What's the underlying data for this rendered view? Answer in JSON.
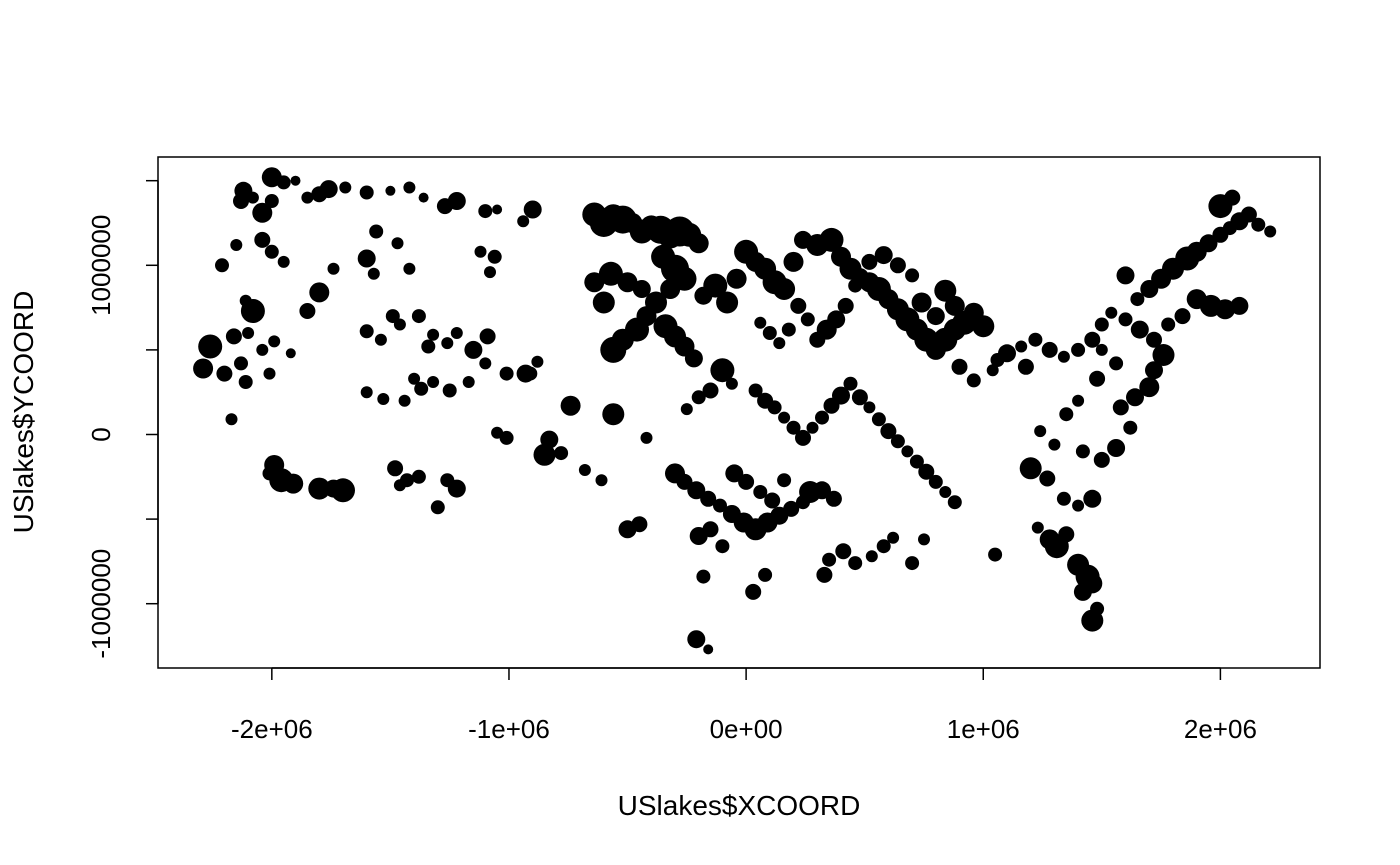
{
  "chart_data": {
    "type": "scatter",
    "title": "",
    "xlabel": "USlakes$XCOORD",
    "ylabel": "USlakes$YCOORD",
    "xlim": [
      -2480000,
      2420000
    ],
    "ylim": [
      -1380000,
      1640000
    ],
    "x_ticks": [
      -2000000,
      -1000000,
      0,
      1000000,
      2000000
    ],
    "x_tick_labels": [
      "-2e+06",
      "-1e+06",
      "0e+00",
      "1e+06",
      "2e+06"
    ],
    "y_ticks": [
      -1000000,
      -500000,
      0,
      500000,
      1000000,
      1500000
    ],
    "y_tick_labels": [
      "-1000000",
      "",
      "0",
      "",
      "1000000",
      ""
    ],
    "grid": false,
    "legend": "none",
    "point_color": "#000000",
    "size_note": "symbol size varies per lake",
    "points": [
      [
        -2000000,
        1520000,
        10
      ],
      [
        -1950000,
        1490000,
        7
      ],
      [
        -1900000,
        1500000,
        5
      ],
      [
        -2120000,
        1440000,
        9
      ],
      [
        -2080000,
        1400000,
        6
      ],
      [
        -2130000,
        1380000,
        8
      ],
      [
        -2040000,
        1310000,
        10
      ],
      [
        -2000000,
        1380000,
        7
      ],
      [
        -1850000,
        1400000,
        6
      ],
      [
        -1800000,
        1420000,
        8
      ],
      [
        -1760000,
        1450000,
        9
      ],
      [
        -1690000,
        1460000,
        6
      ],
      [
        -1600000,
        1430000,
        7
      ],
      [
        -1500000,
        1440000,
        5
      ],
      [
        -1420000,
        1460000,
        6
      ],
      [
        -1360000,
        1400000,
        5
      ],
      [
        -1270000,
        1350000,
        8
      ],
      [
        -1220000,
        1380000,
        9
      ],
      [
        -1100000,
        1320000,
        7
      ],
      [
        -1050000,
        1330000,
        5
      ],
      [
        -900000,
        1330000,
        9
      ],
      [
        -940000,
        1260000,
        6
      ],
      [
        -2150000,
        1120000,
        6
      ],
      [
        -2210000,
        1000000,
        7
      ],
      [
        -2040000,
        1150000,
        8
      ],
      [
        -2000000,
        1080000,
        7
      ],
      [
        -1950000,
        1020000,
        6
      ],
      [
        -1600000,
        1040000,
        9
      ],
      [
        -1570000,
        950000,
        6
      ],
      [
        -1470000,
        1130000,
        6
      ],
      [
        -1560000,
        1200000,
        7
      ],
      [
        -1420000,
        980000,
        6
      ],
      [
        -1120000,
        1080000,
        6
      ],
      [
        -1060000,
        1050000,
        7
      ],
      [
        -1080000,
        960000,
        6
      ],
      [
        -2260000,
        520000,
        12
      ],
      [
        -2290000,
        390000,
        10
      ],
      [
        -2200000,
        360000,
        8
      ],
      [
        -2130000,
        420000,
        7
      ],
      [
        -2110000,
        310000,
        7
      ],
      [
        -2100000,
        600000,
        6
      ],
      [
        -2160000,
        580000,
        8
      ],
      [
        -2040000,
        500000,
        6
      ],
      [
        -1990000,
        550000,
        6
      ],
      [
        -2010000,
        360000,
        6
      ],
      [
        -2110000,
        790000,
        6
      ],
      [
        -2080000,
        730000,
        12
      ],
      [
        -1920000,
        480000,
        5
      ],
      [
        -1850000,
        730000,
        8
      ],
      [
        -1800000,
        840000,
        10
      ],
      [
        -1740000,
        980000,
        6
      ],
      [
        -1600000,
        610000,
        7
      ],
      [
        -1540000,
        560000,
        6
      ],
      [
        -1490000,
        700000,
        7
      ],
      [
        -1460000,
        650000,
        6
      ],
      [
        -1380000,
        700000,
        7
      ],
      [
        -1320000,
        590000,
        6
      ],
      [
        -1260000,
        540000,
        6
      ],
      [
        -1340000,
        520000,
        7
      ],
      [
        -1220000,
        600000,
        6
      ],
      [
        -1150000,
        500000,
        9
      ],
      [
        -1400000,
        330000,
        6
      ],
      [
        -1440000,
        200000,
        6
      ],
      [
        -1370000,
        270000,
        7
      ],
      [
        -1320000,
        310000,
        6
      ],
      [
        -1250000,
        260000,
        7
      ],
      [
        -1170000,
        310000,
        6
      ],
      [
        -1090000,
        580000,
        8
      ],
      [
        -1010000,
        360000,
        7
      ],
      [
        -930000,
        360000,
        9
      ],
      [
        -880000,
        430000,
        6
      ],
      [
        -910000,
        360000,
        7
      ],
      [
        -1100000,
        420000,
        6
      ],
      [
        -1530000,
        210000,
        6
      ],
      [
        -1600000,
        250000,
        6
      ],
      [
        -2170000,
        90000,
        6
      ],
      [
        -1990000,
        -180000,
        10
      ],
      [
        -2010000,
        -230000,
        7
      ],
      [
        -1960000,
        -270000,
        12
      ],
      [
        -1910000,
        -290000,
        10
      ],
      [
        -1800000,
        -320000,
        11
      ],
      [
        -1740000,
        -320000,
        9
      ],
      [
        -1700000,
        -330000,
        12
      ],
      [
        -1480000,
        -200000,
        8
      ],
      [
        -1430000,
        -270000,
        7
      ],
      [
        -1380000,
        -250000,
        7
      ],
      [
        -1460000,
        -300000,
        6
      ],
      [
        -1260000,
        -270000,
        7
      ],
      [
        -1220000,
        -320000,
        9
      ],
      [
        -1300000,
        -430000,
        7
      ],
      [
        -1050000,
        10000,
        6
      ],
      [
        -1010000,
        -20000,
        7
      ],
      [
        -830000,
        -30000,
        9
      ],
      [
        -850000,
        -120000,
        11
      ],
      [
        -780000,
        -110000,
        7
      ],
      [
        -740000,
        170000,
        10
      ],
      [
        -680000,
        -210000,
        6
      ],
      [
        -610000,
        -270000,
        6
      ],
      [
        -560000,
        120000,
        11
      ],
      [
        -420000,
        -20000,
        6
      ],
      [
        -500000,
        -560000,
        9
      ],
      [
        -450000,
        -530000,
        8
      ],
      [
        -640000,
        1300000,
        12
      ],
      [
        -600000,
        1250000,
        14
      ],
      [
        -560000,
        1290000,
        12
      ],
      [
        -520000,
        1270000,
        14
      ],
      [
        -480000,
        1250000,
        10
      ],
      [
        -440000,
        1200000,
        12
      ],
      [
        -400000,
        1230000,
        11
      ],
      [
        -360000,
        1210000,
        14
      ],
      [
        -320000,
        1170000,
        12
      ],
      [
        -280000,
        1200000,
        15
      ],
      [
        -240000,
        1180000,
        12
      ],
      [
        -200000,
        1130000,
        10
      ],
      [
        -350000,
        1050000,
        12
      ],
      [
        -300000,
        980000,
        14
      ],
      [
        -260000,
        920000,
        12
      ],
      [
        -320000,
        860000,
        10
      ],
      [
        -380000,
        780000,
        11
      ],
      [
        -420000,
        700000,
        10
      ],
      [
        -460000,
        620000,
        12
      ],
      [
        -520000,
        560000,
        11
      ],
      [
        -560000,
        500000,
        13
      ],
      [
        -600000,
        780000,
        11
      ],
      [
        -640000,
        900000,
        10
      ],
      [
        -570000,
        950000,
        12
      ],
      [
        -500000,
        900000,
        10
      ],
      [
        -440000,
        860000,
        9
      ],
      [
        -340000,
        640000,
        12
      ],
      [
        -300000,
        580000,
        11
      ],
      [
        -260000,
        520000,
        10
      ],
      [
        -220000,
        450000,
        9
      ],
      [
        -180000,
        820000,
        9
      ],
      [
        -130000,
        880000,
        12
      ],
      [
        -80000,
        780000,
        11
      ],
      [
        -40000,
        920000,
        10
      ],
      [
        0,
        1080000,
        12
      ],
      [
        40000,
        1020000,
        10
      ],
      [
        80000,
        980000,
        11
      ],
      [
        120000,
        900000,
        12
      ],
      [
        160000,
        860000,
        11
      ],
      [
        200000,
        1020000,
        10
      ],
      [
        240000,
        1150000,
        9
      ],
      [
        300000,
        1120000,
        11
      ],
      [
        360000,
        1150000,
        12
      ],
      [
        400000,
        1050000,
        10
      ],
      [
        440000,
        980000,
        11
      ],
      [
        480000,
        930000,
        9
      ],
      [
        520000,
        900000,
        10
      ],
      [
        560000,
        860000,
        12
      ],
      [
        600000,
        800000,
        10
      ],
      [
        640000,
        740000,
        11
      ],
      [
        680000,
        680000,
        12
      ],
      [
        720000,
        620000,
        11
      ],
      [
        760000,
        560000,
        12
      ],
      [
        800000,
        500000,
        10
      ],
      [
        840000,
        560000,
        12
      ],
      [
        880000,
        620000,
        11
      ],
      [
        920000,
        660000,
        12
      ],
      [
        960000,
        720000,
        10
      ],
      [
        1000000,
        640000,
        11
      ],
      [
        880000,
        760000,
        10
      ],
      [
        840000,
        850000,
        11
      ],
      [
        800000,
        700000,
        9
      ],
      [
        740000,
        780000,
        10
      ],
      [
        580000,
        1060000,
        9
      ],
      [
        640000,
        1000000,
        8
      ],
      [
        700000,
        940000,
        7
      ],
      [
        520000,
        1020000,
        8
      ],
      [
        460000,
        880000,
        7
      ],
      [
        420000,
        760000,
        8
      ],
      [
        380000,
        680000,
        9
      ],
      [
        340000,
        620000,
        10
      ],
      [
        300000,
        560000,
        8
      ],
      [
        260000,
        680000,
        7
      ],
      [
        220000,
        760000,
        8
      ],
      [
        180000,
        620000,
        7
      ],
      [
        140000,
        540000,
        6
      ],
      [
        100000,
        600000,
        7
      ],
      [
        60000,
        660000,
        6
      ],
      [
        -60000,
        300000,
        6
      ],
      [
        -100000,
        380000,
        12
      ],
      [
        -150000,
        260000,
        8
      ],
      [
        -200000,
        220000,
        7
      ],
      [
        -250000,
        150000,
        6
      ],
      [
        40000,
        260000,
        7
      ],
      [
        80000,
        200000,
        8
      ],
      [
        120000,
        160000,
        7
      ],
      [
        160000,
        100000,
        6
      ],
      [
        200000,
        40000,
        7
      ],
      [
        240000,
        -20000,
        8
      ],
      [
        280000,
        40000,
        6
      ],
      [
        320000,
        100000,
        7
      ],
      [
        360000,
        170000,
        8
      ],
      [
        400000,
        230000,
        9
      ],
      [
        440000,
        300000,
        7
      ],
      [
        480000,
        220000,
        8
      ],
      [
        520000,
        160000,
        6
      ],
      [
        560000,
        90000,
        7
      ],
      [
        600000,
        20000,
        8
      ],
      [
        640000,
        -40000,
        7
      ],
      [
        680000,
        -100000,
        6
      ],
      [
        720000,
        -160000,
        7
      ],
      [
        760000,
        -220000,
        8
      ],
      [
        800000,
        -280000,
        7
      ],
      [
        840000,
        -340000,
        6
      ],
      [
        880000,
        -400000,
        7
      ],
      [
        -300000,
        -230000,
        10
      ],
      [
        -260000,
        -280000,
        8
      ],
      [
        -210000,
        -330000,
        9
      ],
      [
        -160000,
        -380000,
        8
      ],
      [
        -110000,
        -420000,
        7
      ],
      [
        -60000,
        -470000,
        9
      ],
      [
        -10000,
        -520000,
        10
      ],
      [
        40000,
        -560000,
        11
      ],
      [
        90000,
        -520000,
        10
      ],
      [
        140000,
        -480000,
        9
      ],
      [
        190000,
        -440000,
        8
      ],
      [
        240000,
        -400000,
        7
      ],
      [
        270000,
        -340000,
        11
      ],
      [
        320000,
        -330000,
        9
      ],
      [
        370000,
        -380000,
        8
      ],
      [
        -50000,
        -230000,
        9
      ],
      [
        0,
        -280000,
        8
      ],
      [
        60000,
        -340000,
        7
      ],
      [
        110000,
        -390000,
        8
      ],
      [
        160000,
        -270000,
        7
      ],
      [
        -200000,
        -600000,
        9
      ],
      [
        -150000,
        -560000,
        8
      ],
      [
        -100000,
        -660000,
        7
      ],
      [
        -180000,
        -840000,
        7
      ],
      [
        30000,
        -930000,
        8
      ],
      [
        80000,
        -830000,
        7
      ],
      [
        330000,
        -830000,
        8
      ],
      [
        350000,
        -740000,
        7
      ],
      [
        410000,
        -690000,
        8
      ],
      [
        460000,
        -760000,
        7
      ],
      [
        530000,
        -720000,
        6
      ],
      [
        580000,
        -660000,
        7
      ],
      [
        620000,
        -610000,
        6
      ],
      [
        700000,
        -760000,
        7
      ],
      [
        750000,
        -620000,
        6
      ],
      [
        -210000,
        -1210000,
        9
      ],
      [
        -160000,
        -1270000,
        5
      ],
      [
        1050000,
        -710000,
        7
      ],
      [
        1230000,
        -550000,
        6
      ],
      [
        1310000,
        -660000,
        12
      ],
      [
        1280000,
        -620000,
        10
      ],
      [
        1350000,
        -590000,
        8
      ],
      [
        1400000,
        -770000,
        11
      ],
      [
        1440000,
        -840000,
        12
      ],
      [
        1460000,
        -880000,
        10
      ],
      [
        1420000,
        -930000,
        9
      ],
      [
        1480000,
        -1030000,
        7
      ],
      [
        1460000,
        -1100000,
        11
      ],
      [
        1200000,
        -200000,
        11
      ],
      [
        1270000,
        -260000,
        8
      ],
      [
        1340000,
        -380000,
        7
      ],
      [
        1400000,
        -420000,
        6
      ],
      [
        1460000,
        -380000,
        9
      ],
      [
        1420000,
        -100000,
        7
      ],
      [
        1300000,
        -60000,
        6
      ],
      [
        1240000,
        20000,
        6
      ],
      [
        1350000,
        120000,
        7
      ],
      [
        1400000,
        200000,
        6
      ],
      [
        1500000,
        -150000,
        8
      ],
      [
        1560000,
        -80000,
        9
      ],
      [
        1620000,
        40000,
        7
      ],
      [
        1580000,
        160000,
        8
      ],
      [
        1640000,
        220000,
        9
      ],
      [
        1700000,
        280000,
        10
      ],
      [
        1720000,
        380000,
        9
      ],
      [
        1760000,
        470000,
        11
      ],
      [
        1720000,
        560000,
        8
      ],
      [
        1660000,
        620000,
        9
      ],
      [
        1600000,
        680000,
        7
      ],
      [
        1540000,
        720000,
        6
      ],
      [
        1500000,
        650000,
        7
      ],
      [
        1460000,
        560000,
        8
      ],
      [
        1400000,
        500000,
        7
      ],
      [
        1340000,
        460000,
        6
      ],
      [
        1280000,
        500000,
        8
      ],
      [
        1220000,
        560000,
        7
      ],
      [
        1160000,
        520000,
        6
      ],
      [
        1100000,
        480000,
        9
      ],
      [
        1060000,
        440000,
        7
      ],
      [
        1180000,
        400000,
        8
      ],
      [
        1040000,
        380000,
        6
      ],
      [
        960000,
        320000,
        7
      ],
      [
        900000,
        400000,
        8
      ],
      [
        1650000,
        800000,
        7
      ],
      [
        1700000,
        860000,
        9
      ],
      [
        1750000,
        920000,
        10
      ],
      [
        1800000,
        980000,
        11
      ],
      [
        1860000,
        1040000,
        12
      ],
      [
        1900000,
        1080000,
        10
      ],
      [
        1950000,
        1130000,
        9
      ],
      [
        2000000,
        1180000,
        8
      ],
      [
        2040000,
        1220000,
        7
      ],
      [
        2080000,
        1260000,
        9
      ],
      [
        2120000,
        1300000,
        8
      ],
      [
        2160000,
        1240000,
        7
      ],
      [
        2210000,
        1200000,
        6
      ],
      [
        2000000,
        1350000,
        12
      ],
      [
        2050000,
        1400000,
        8
      ],
      [
        1900000,
        800000,
        10
      ],
      [
        1960000,
        760000,
        11
      ],
      [
        2020000,
        740000,
        10
      ],
      [
        2080000,
        760000,
        9
      ],
      [
        1840000,
        700000,
        8
      ],
      [
        1780000,
        650000,
        7
      ],
      [
        1600000,
        940000,
        9
      ],
      [
        1500000,
        500000,
        6
      ],
      [
        1560000,
        420000,
        7
      ],
      [
        1480000,
        330000,
        8
      ]
    ]
  }
}
